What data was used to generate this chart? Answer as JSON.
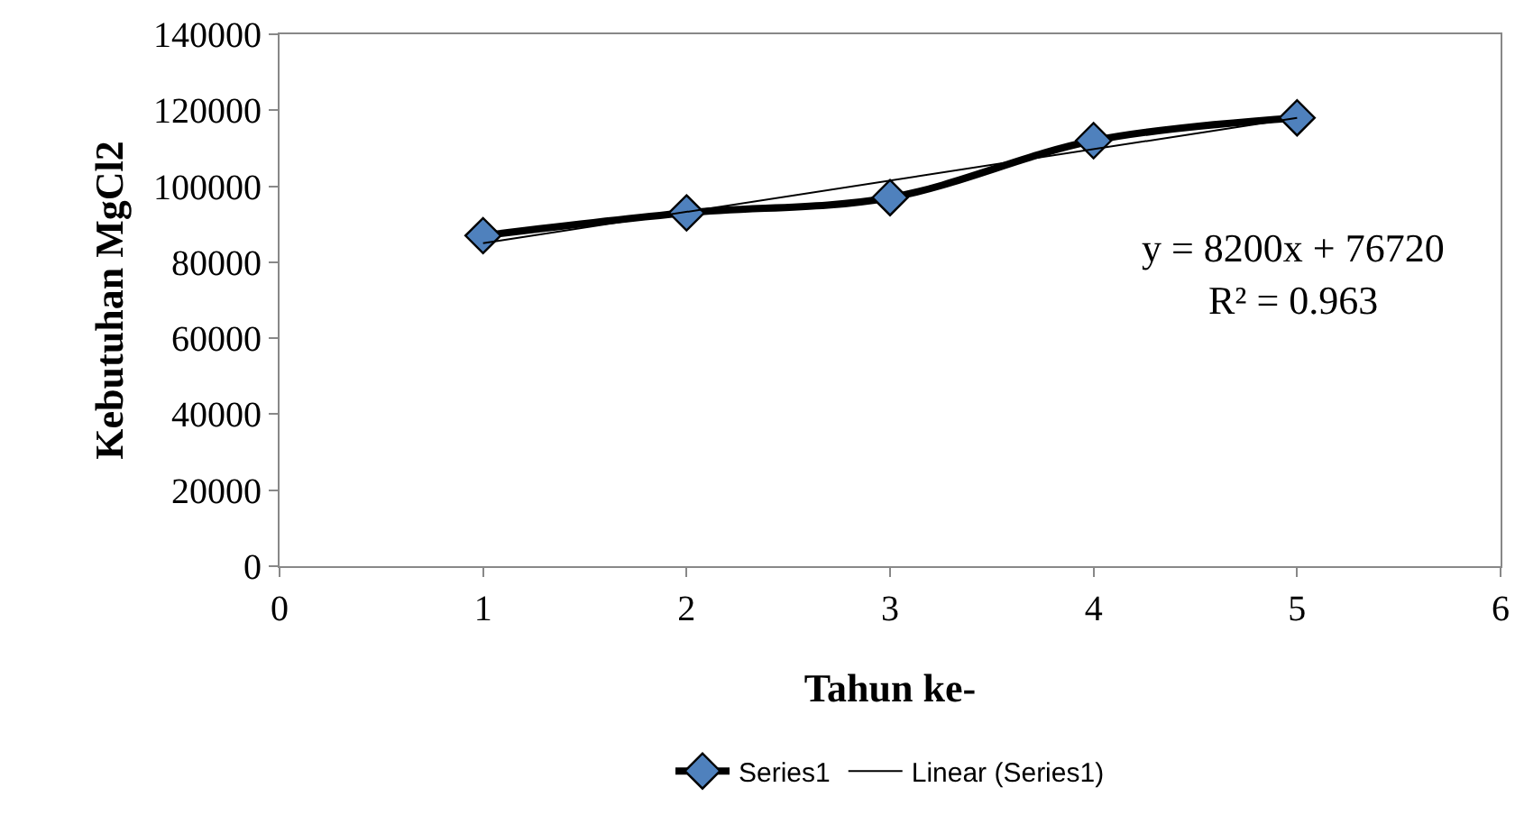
{
  "chart_data": {
    "type": "line",
    "xlabel": "Tahun ke-",
    "ylabel": "Kebutuhan MgCl2",
    "x": [
      1,
      2,
      3,
      4,
      5
    ],
    "series": [
      {
        "name": "Series1",
        "color": "#4f81bd",
        "values": [
          87000,
          93000,
          97000,
          112000,
          118000
        ],
        "marker": "diamond"
      },
      {
        "name": "Linear (Series1)",
        "color": "#000000",
        "type": "line",
        "x": [
          1,
          5
        ],
        "values": [
          85000,
          118000
        ],
        "marker": "none"
      }
    ],
    "xlim": [
      0,
      6
    ],
    "xticks": [
      0,
      1,
      2,
      3,
      4,
      5,
      6
    ],
    "ylim": [
      0,
      140000
    ],
    "yticks": [
      0,
      20000,
      40000,
      60000,
      80000,
      100000,
      120000,
      140000
    ],
    "annotations": [
      "y = 8200x + 76720",
      "R² = 0.963"
    ],
    "grid": false,
    "legend": "bottom",
    "line_style": "solid"
  }
}
